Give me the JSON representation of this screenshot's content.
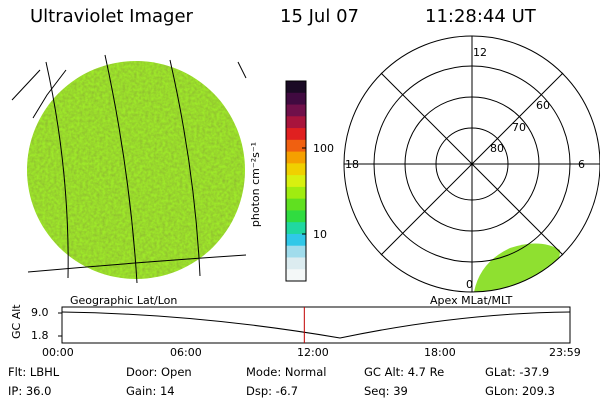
{
  "header": {
    "instrument": "Ultraviolet Imager",
    "date": "15 Jul 07",
    "time": "11:28:44 UT"
  },
  "colorbar": {
    "unit_label": "photon cm⁻²s⁻¹",
    "ticks": [
      "100",
      "10"
    ],
    "colors": [
      "#1a0a24",
      "#400a40",
      "#70104a",
      "#a8143c",
      "#e02020",
      "#f06010",
      "#f5a000",
      "#f0d000",
      "#d8f010",
      "#a0ec10",
      "#60e020",
      "#30dc40",
      "#20d8a0",
      "#30c8e8",
      "#a0dcec",
      "#dcecf0",
      "#f4f8f8"
    ]
  },
  "left_panel": {
    "label": "Geographic Lat/Lon",
    "image_color": "#9ee82a"
  },
  "right_panel": {
    "label": "Apex MLat/MLT",
    "lat_labels": [
      "60",
      "70",
      "80"
    ],
    "mlt_labels": {
      "top": "12",
      "left": "18",
      "right": "6",
      "bottom": "0"
    }
  },
  "timeline": {
    "ylabel": "GC Alt",
    "y_ticks": [
      "9.0",
      "1.8"
    ],
    "x_ticks": [
      "00:00",
      "06:00",
      "12:00",
      "18:00",
      "23:59"
    ],
    "current_fraction": 0.477,
    "marker_color": "#c00000"
  },
  "info": {
    "flt": "Flt: LBHL",
    "ip": "IP: 36.0",
    "door": "Door: Open",
    "gain": "Gain: 14",
    "mode": "Mode: Normal",
    "dsp": "Dsp:   -6.7",
    "gc_alt": "GC Alt: 4.7 Re",
    "seq": "Seq: 39",
    "glat": "GLat: -37.9",
    "glon": "GLon: 209.3"
  }
}
